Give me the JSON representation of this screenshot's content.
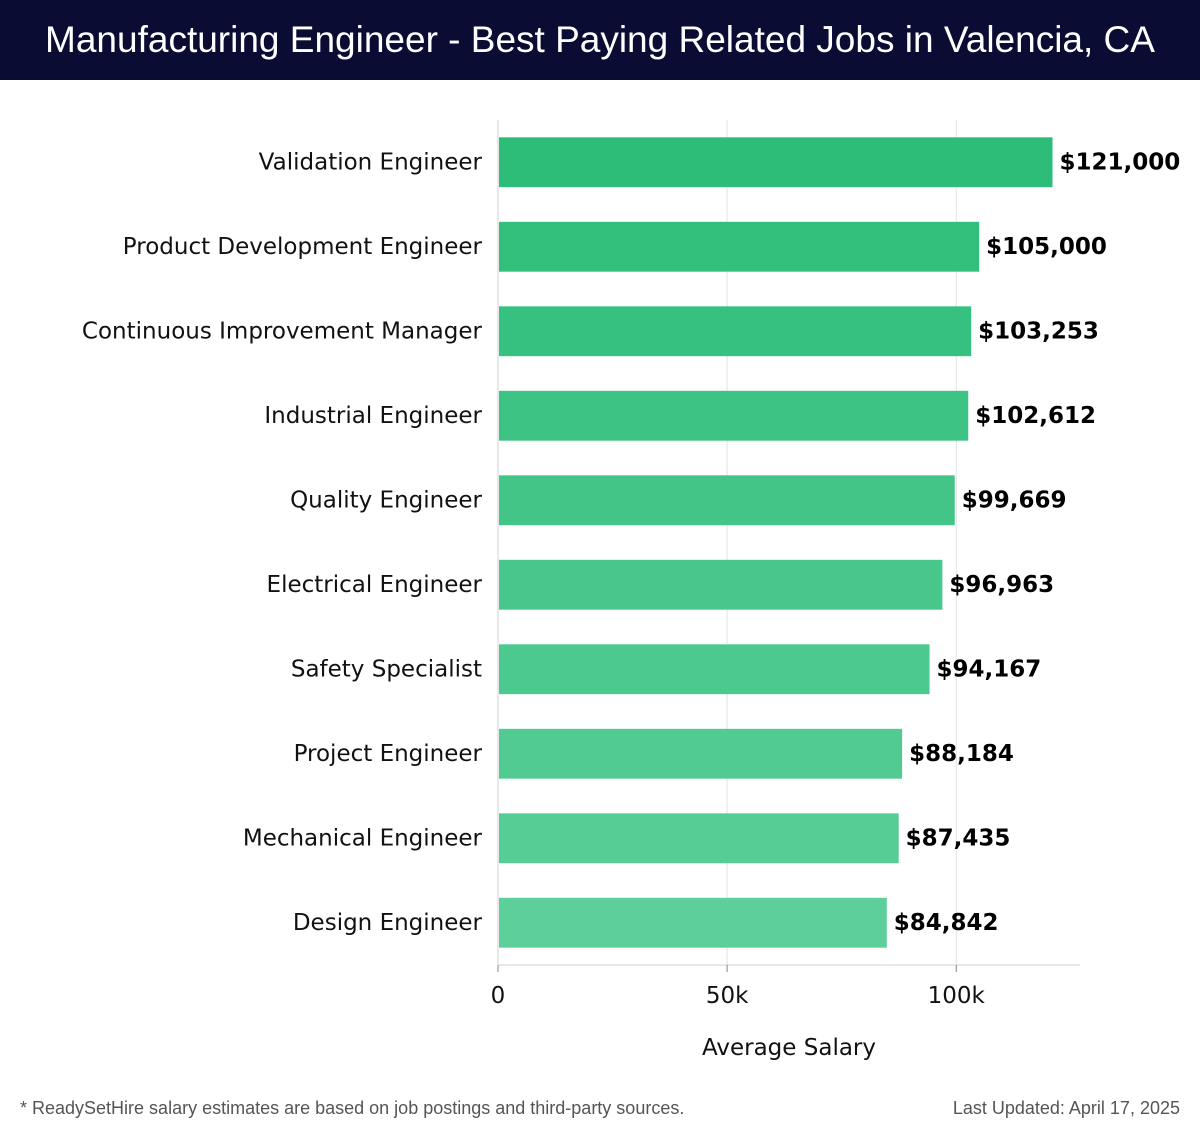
{
  "header": {
    "title": "Manufacturing Engineer - Best Paying Related Jobs in Valencia, CA"
  },
  "chart_data": {
    "type": "bar",
    "orientation": "horizontal",
    "categories": [
      "Validation Engineer",
      "Product Development Engineer",
      "Continuous Improvement Manager",
      "Industrial Engineer",
      "Quality Engineer",
      "Electrical Engineer",
      "Safety Specialist",
      "Project Engineer",
      "Mechanical Engineer",
      "Design Engineer"
    ],
    "values": [
      121000,
      105000,
      103253,
      102612,
      99669,
      96963,
      94167,
      88184,
      87435,
      84842
    ],
    "value_labels": [
      "$121,000",
      "$105,000",
      "$103,253",
      "$102,612",
      "$99,669",
      "$96,963",
      "$94,167",
      "$88,184",
      "$87,435",
      "$84,842"
    ],
    "xlabel": "Average Salary",
    "xticks": [
      0,
      50000,
      100000
    ],
    "xtick_labels": [
      "0",
      "50k",
      "100k"
    ],
    "xlim": [
      0,
      127000
    ],
    "grid": true,
    "colors": {
      "bar_top": "#2dbd78",
      "bar_bottom": "#5ccf9a"
    }
  },
  "footer": {
    "note": "* ReadySetHire salary estimates are based on job postings and third-party sources.",
    "updated": "Last Updated: April 17, 2025"
  }
}
